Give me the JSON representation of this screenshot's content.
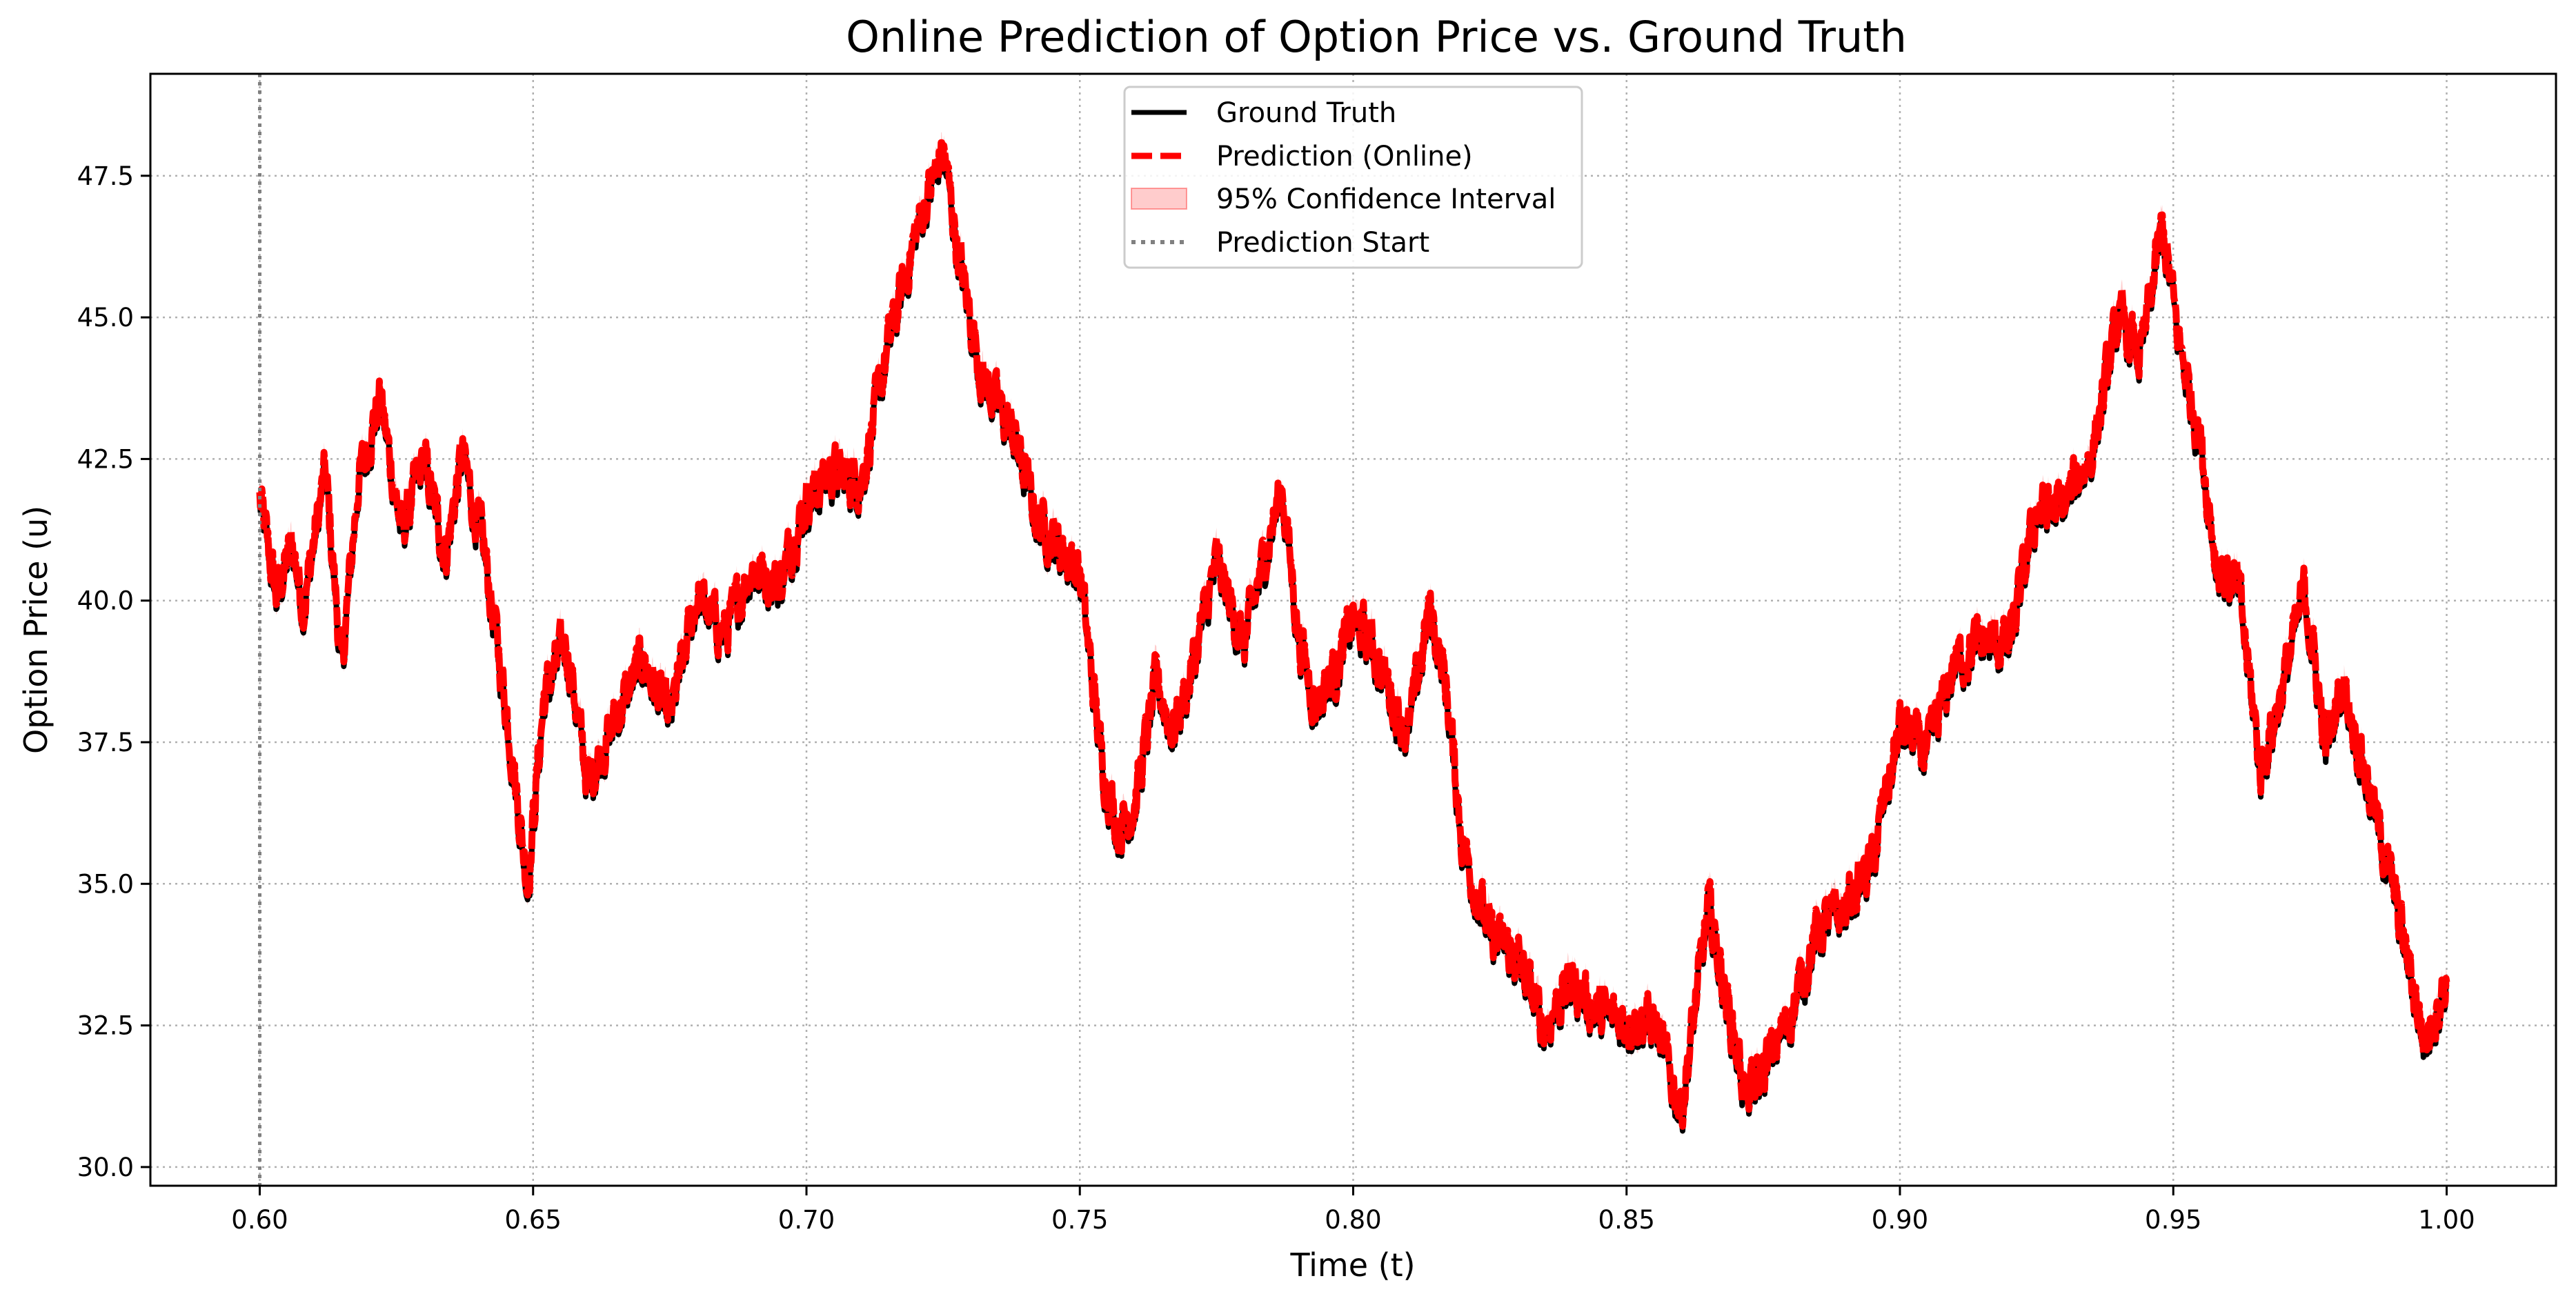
{
  "chart_data": {
    "type": "line",
    "title": "Online Prediction of Option Price vs. Ground Truth",
    "xlabel": "Time (t)",
    "ylabel": "Option Price (u)",
    "xlim": [
      0.58,
      1.02
    ],
    "ylim": [
      29.67,
      49.3
    ],
    "xticks": [
      0.6,
      0.65,
      0.7,
      0.75,
      0.8,
      0.85,
      0.9,
      0.95,
      1.0
    ],
    "xtick_labels": [
      "0.60",
      "0.65",
      "0.70",
      "0.75",
      "0.80",
      "0.85",
      "0.90",
      "0.95",
      "1.00"
    ],
    "yticks": [
      30.0,
      32.5,
      35.0,
      37.5,
      40.0,
      42.5,
      45.0,
      47.5
    ],
    "ytick_labels": [
      "30.0",
      "32.5",
      "35.0",
      "37.5",
      "40.0",
      "42.5",
      "45.0",
      "47.5"
    ],
    "grid": true,
    "legend_position": "top-center",
    "prediction_start": 0.6,
    "anchor_points": [
      [
        0.6,
        41.8
      ],
      [
        0.603,
        40.1
      ],
      [
        0.606,
        41.0
      ],
      [
        0.608,
        39.9
      ],
      [
        0.612,
        42.3
      ],
      [
        0.615,
        38.8
      ],
      [
        0.618,
        42.1
      ],
      [
        0.622,
        43.6
      ],
      [
        0.626,
        41.2
      ],
      [
        0.63,
        42.5
      ],
      [
        0.634,
        40.8
      ],
      [
        0.637,
        42.6
      ],
      [
        0.641,
        40.9
      ],
      [
        0.645,
        38.2
      ],
      [
        0.649,
        35.0
      ],
      [
        0.652,
        38.3
      ],
      [
        0.656,
        39.3
      ],
      [
        0.66,
        36.8
      ],
      [
        0.665,
        37.9
      ],
      [
        0.67,
        39.0
      ],
      [
        0.675,
        37.9
      ],
      [
        0.68,
        40.1
      ],
      [
        0.685,
        39.4
      ],
      [
        0.69,
        40.6
      ],
      [
        0.695,
        40.3
      ],
      [
        0.7,
        41.8
      ],
      [
        0.705,
        42.3
      ],
      [
        0.71,
        42.1
      ],
      [
        0.715,
        44.5
      ],
      [
        0.72,
        46.5
      ],
      [
        0.725,
        48.0
      ],
      [
        0.728,
        46.0
      ],
      [
        0.732,
        44.0
      ],
      [
        0.738,
        42.9
      ],
      [
        0.742,
        41.5
      ],
      [
        0.746,
        41.0
      ],
      [
        0.75,
        40.5
      ],
      [
        0.754,
        37.2
      ],
      [
        0.757,
        36.0
      ],
      [
        0.76,
        36.4
      ],
      [
        0.764,
        38.6
      ],
      [
        0.767,
        37.7
      ],
      [
        0.77,
        38.6
      ],
      [
        0.775,
        40.7
      ],
      [
        0.78,
        39.2
      ],
      [
        0.784,
        40.9
      ],
      [
        0.787,
        42.0
      ],
      [
        0.79,
        39.4
      ],
      [
        0.793,
        38.2
      ],
      [
        0.797,
        38.8
      ],
      [
        0.8,
        39.7
      ],
      [
        0.803,
        39.3
      ],
      [
        0.806,
        38.6
      ],
      [
        0.81,
        37.6
      ],
      [
        0.814,
        39.9
      ],
      [
        0.817,
        38.5
      ],
      [
        0.82,
        35.7
      ],
      [
        0.825,
        34.1
      ],
      [
        0.83,
        33.7
      ],
      [
        0.835,
        32.5
      ],
      [
        0.84,
        33.3
      ],
      [
        0.845,
        32.7
      ],
      [
        0.85,
        32.6
      ],
      [
        0.855,
        32.6
      ],
      [
        0.86,
        31.0
      ],
      [
        0.865,
        34.6
      ],
      [
        0.868,
        33.1
      ],
      [
        0.872,
        31.2
      ],
      [
        0.876,
        31.9
      ],
      [
        0.88,
        32.7
      ],
      [
        0.885,
        34.2
      ],
      [
        0.89,
        34.6
      ],
      [
        0.895,
        35.4
      ],
      [
        0.9,
        37.8
      ],
      [
        0.905,
        37.3
      ],
      [
        0.91,
        38.9
      ],
      [
        0.915,
        39.3
      ],
      [
        0.92,
        39.2
      ],
      [
        0.925,
        41.6
      ],
      [
        0.93,
        41.7
      ],
      [
        0.935,
        42.6
      ],
      [
        0.94,
        45.0
      ],
      [
        0.944,
        44.3
      ],
      [
        0.948,
        46.6
      ],
      [
        0.951,
        44.6
      ],
      [
        0.955,
        42.8
      ],
      [
        0.958,
        40.6
      ],
      [
        0.962,
        40.2
      ],
      [
        0.966,
        37.0
      ],
      [
        0.97,
        38.5
      ],
      [
        0.974,
        40.2
      ],
      [
        0.978,
        37.4
      ],
      [
        0.981,
        38.6
      ],
      [
        0.985,
        37.0
      ],
      [
        0.99,
        35.0
      ],
      [
        0.993,
        33.6
      ],
      [
        0.996,
        32.2
      ],
      [
        1.0,
        33.3
      ]
    ],
    "noise_amplitude": 0.45,
    "series": [
      {
        "name": "Ground Truth",
        "color": "#000000",
        "style": "solid"
      },
      {
        "name": "Prediction (Online)",
        "color": "#ff0000",
        "style": "dashed"
      },
      {
        "name": "95% Confidence Interval",
        "color": "#ff0000",
        "style": "band"
      },
      {
        "name": "Prediction Start",
        "color": "#808080",
        "style": "dotted"
      }
    ]
  }
}
